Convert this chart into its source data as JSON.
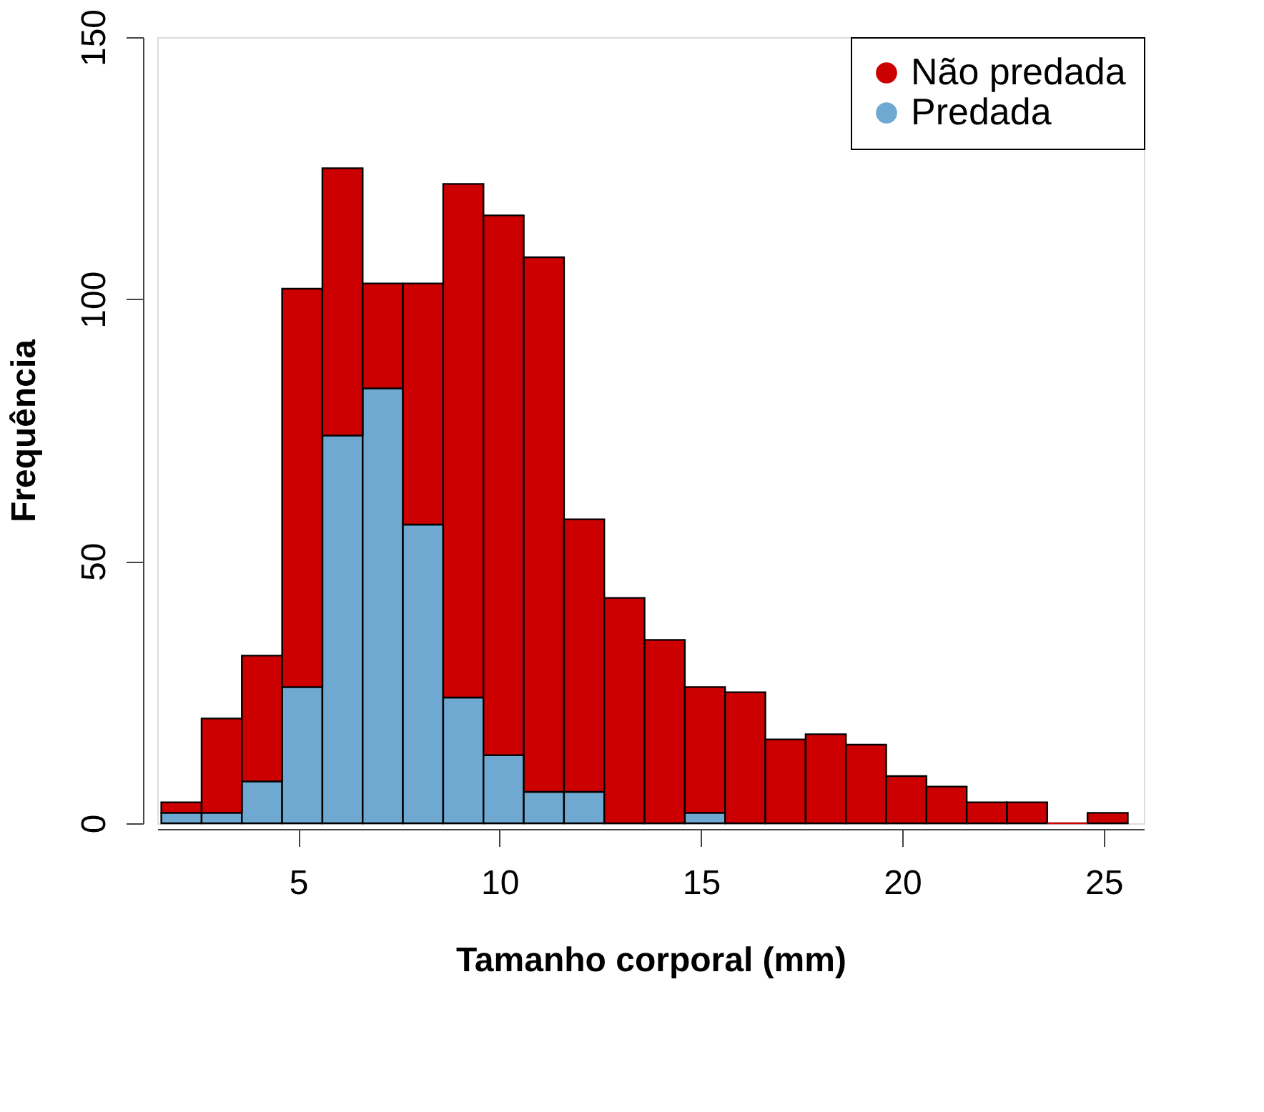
{
  "chart_data": {
    "type": "bar",
    "xlabel": "Tamanho corporal (mm)",
    "ylabel": "Frequência",
    "x": [
      2.1,
      3.1,
      4.1,
      5.1,
      6.1,
      7.1,
      8.1,
      9.1,
      10.1,
      11.1,
      12.1,
      13.1,
      14.1,
      15.1,
      16.1,
      17.1,
      18.1,
      19.1,
      20.1,
      21.1,
      22.1,
      23.1,
      24.1,
      25.1
    ],
    "stacked": true,
    "series": [
      {
        "name": "Predada",
        "color": "#6fa8d0",
        "values": [
          2,
          2,
          8,
          26,
          74,
          83,
          57,
          24,
          13,
          6,
          6,
          0,
          0,
          2,
          0,
          0,
          0,
          0,
          0,
          0,
          0,
          0,
          0,
          0
        ]
      },
      {
        "name": "Não predada",
        "color": "#cc0000",
        "values": [
          2,
          18,
          24,
          76,
          51,
          20,
          46,
          98,
          103,
          102,
          52,
          43,
          35,
          24,
          25,
          16,
          17,
          15,
          9,
          7,
          4,
          4,
          0,
          2
        ]
      }
    ],
    "xlim": [
      1.5,
      26
    ],
    "xticks": [
      5,
      10,
      15,
      20,
      25
    ],
    "ylim": [
      0,
      150
    ],
    "yticks": [
      0,
      50,
      100,
      150
    ],
    "grid": false,
    "legend": "top right"
  }
}
